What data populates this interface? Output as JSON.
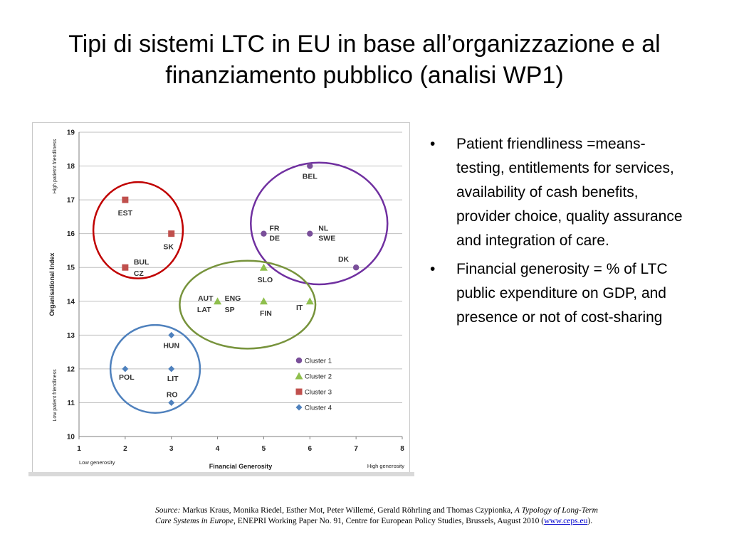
{
  "slide": {
    "title_line1": "Tipi di sistemi LTC in EU in base all’organizzazione e al",
    "title_line2": "finanziamento pubblico  (analisi WP1)"
  },
  "bullets": [
    {
      "symbol": "•",
      "text": "Patient  friendliness =means-testing, entitlements for services, availability of cash benefits, provider choice, quality assurance and integration of care."
    },
    {
      "symbol": "•",
      "text": "Financial generosity = % of LTC public expenditure on GDP, and presence or not of cost-sharing"
    }
  ],
  "source": {
    "label": "Source:",
    "authors": " Markus Kraus, Monika Riedel, Esther Mot, Peter Willemé, Gerald Röhrling and Thomas Czypionka, ",
    "work": "A Typology of Long-Term Care Systems in Europe",
    "rest": ", ENEPRI Working Paper No. 91, Centre for European Policy Studies, Brussels, August 2010 (",
    "link": "www.ceps.eu",
    "end": ")."
  },
  "chart_data": {
    "type": "scatter",
    "xlabel": "Financial  Generosity",
    "ylabel": "Organisational Index",
    "x_low_label": "Low generosity",
    "x_high_label": "High generosity",
    "y_low_label": "Low patient friendliness",
    "y_high_label": "High patietnt friendliness",
    "xlim": [
      1,
      8
    ],
    "ylim": [
      10,
      19
    ],
    "x_ticks": [
      1,
      2,
      3,
      4,
      5,
      6,
      7,
      8
    ],
    "y_ticks": [
      10,
      11,
      12,
      13,
      14,
      15,
      16,
      17,
      18,
      19
    ],
    "grid": "horizontal",
    "legend_position": "bottom-right",
    "series": [
      {
        "name": "Cluster 1",
        "color": "#7a4f9a",
        "marker": "circle",
        "points": [
          {
            "x": 6,
            "y": 18,
            "labels": [
              "BEL"
            ]
          },
          {
            "x": 5,
            "y": 16,
            "labels": [
              "FR",
              "DE"
            ]
          },
          {
            "x": 6,
            "y": 16,
            "labels": [
              "NL",
              "SWE"
            ]
          },
          {
            "x": 7,
            "y": 15,
            "labels": [
              "DK"
            ]
          }
        ]
      },
      {
        "name": "Cluster 2",
        "color": "#8fbf4d",
        "marker": "triangle",
        "points": [
          {
            "x": 5,
            "y": 15,
            "labels": [
              "SLO"
            ]
          },
          {
            "x": 4,
            "y": 14,
            "labels": [
              "AUT",
              "LAT",
              "ENG",
              "SP"
            ]
          },
          {
            "x": 5,
            "y": 14,
            "labels": [
              "FIN"
            ]
          },
          {
            "x": 6,
            "y": 14,
            "labels": [
              "IT"
            ]
          }
        ]
      },
      {
        "name": "Cluster 3",
        "color": "#c0504d",
        "marker": "square",
        "points": [
          {
            "x": 2,
            "y": 17,
            "labels": [
              "EST"
            ]
          },
          {
            "x": 3,
            "y": 16,
            "labels": [
              "SK"
            ]
          },
          {
            "x": 2,
            "y": 15,
            "labels": [
              "BUL",
              "CZ"
            ]
          }
        ]
      },
      {
        "name": "Cluster 4",
        "color": "#4f81bd",
        "marker": "diamond",
        "points": [
          {
            "x": 3,
            "y": 13,
            "labels": [
              "HUN"
            ]
          },
          {
            "x": 2,
            "y": 12,
            "labels": [
              "POL"
            ]
          },
          {
            "x": 3,
            "y": 12,
            "labels": [
              "LIT"
            ]
          },
          {
            "x": 3,
            "y": 11,
            "labels": [
              "RO"
            ]
          }
        ]
      }
    ],
    "cluster_ellipses": [
      {
        "cluster": "Cluster 1",
        "color": "#7030a0",
        "cx": 6.2,
        "cy": 16.3,
        "rx": 1.48,
        "ry": 3.6
      },
      {
        "cluster": "Cluster 2",
        "color": "#77933c",
        "cx": 4.65,
        "cy": 13.9,
        "rx": 1.47,
        "ry": 2.6
      },
      {
        "cluster": "Cluster 3",
        "color": "#c00000",
        "cx": 2.28,
        "cy": 16.1,
        "rx": 0.97,
        "ry": 2.85
      },
      {
        "cluster": "Cluster 4",
        "color": "#4f81bd",
        "cx": 2.65,
        "cy": 12.0,
        "rx": 0.97,
        "ry": 2.6
      }
    ]
  }
}
